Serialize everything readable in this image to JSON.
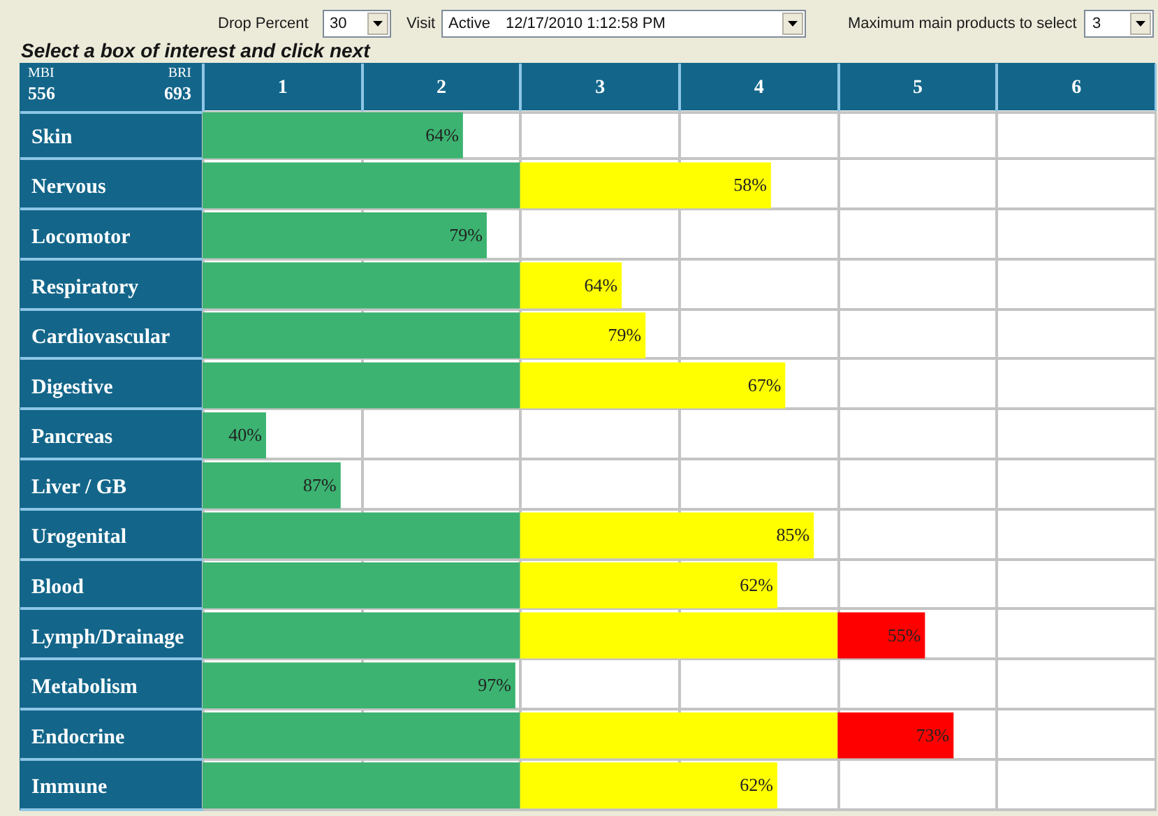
{
  "chart_data": {
    "type": "bar",
    "orientation": "horizontal",
    "stacked": true,
    "title": "Select a box of interest and click next",
    "annotations": [
      "Drop Percent",
      "30",
      "Visit",
      "Active",
      "12/17/2010 1:12:58 PM",
      "Maximum main products to select",
      "3",
      "MBI",
      "556",
      "BRI",
      "693",
      {
        "text": "64%",
        "x": 1.64,
        "y": "Skin"
      },
      {
        "text": "58%",
        "x": 3.58,
        "y": "Nervous"
      },
      {
        "text": "79%",
        "x": 1.79,
        "y": "Locomotor"
      },
      {
        "text": "64%",
        "x": 2.64,
        "y": "Respiratory"
      },
      {
        "text": "79%",
        "x": 2.79,
        "y": "Cardiovascular"
      },
      {
        "text": "67%",
        "x": 3.67,
        "y": "Digestive"
      },
      {
        "text": "40%",
        "x": 0.4,
        "y": "Pancreas"
      },
      {
        "text": "87%",
        "x": 0.87,
        "y": "Liver / GB"
      },
      {
        "text": "85%",
        "x": 3.85,
        "y": "Urogenital"
      },
      {
        "text": "62%",
        "x": 3.62,
        "y": "Blood"
      },
      {
        "text": "55%",
        "x": 4.55,
        "y": "Lymph/Drainage"
      },
      {
        "text": "97%",
        "x": 1.97,
        "y": "Metabolism"
      },
      {
        "text": "73%",
        "x": 4.73,
        "y": "Endocrine"
      },
      {
        "text": "62%",
        "x": 3.62,
        "y": "Immune"
      }
    ],
    "categories": [
      "Skin",
      "Nervous",
      "Locomotor",
      "Respiratory",
      "Cardiovascular",
      "Digestive",
      "Pancreas",
      "Liver / GB",
      "Urogenital",
      "Blood",
      "Lymph/Drainage",
      "Metabolism",
      "Endocrine",
      "Immune"
    ],
    "series": [
      {
        "color": "#3cb371",
        "values": [
          1.64,
          2,
          1.79,
          2,
          2,
          2,
          0.4,
          0.87,
          2,
          2,
          2,
          1.97,
          2,
          2
        ]
      },
      {
        "color": "#ffff00",
        "values": [
          null,
          1.58,
          null,
          0.64,
          0.79,
          1.67,
          null,
          null,
          1.85,
          1.62,
          2,
          null,
          2,
          1.62
        ]
      },
      {
        "color": "#ff0000",
        "values": [
          null,
          null,
          null,
          null,
          null,
          null,
          null,
          null,
          null,
          null,
          0.55,
          null,
          0.73,
          null
        ]
      }
    ],
    "xlim": [
      0,
      6
    ],
    "xticks": [
      {
        "value": 0,
        "label": null
      },
      {
        "value": 0.5,
        "label": "1"
      },
      {
        "value": 1,
        "label": null
      },
      {
        "value": 1.5,
        "label": "2"
      },
      {
        "value": 2,
        "label": null
      },
      {
        "value": 2.5,
        "label": "3"
      },
      {
        "value": 3,
        "label": null
      },
      {
        "value": 3.5,
        "label": "4"
      },
      {
        "value": 4,
        "label": null
      },
      {
        "value": 4.5,
        "label": "5"
      },
      {
        "value": 5,
        "label": null
      },
      {
        "value": 5.5,
        "label": "6"
      },
      {
        "value": 6,
        "label": null
      }
    ],
    "grid": true
  }
}
